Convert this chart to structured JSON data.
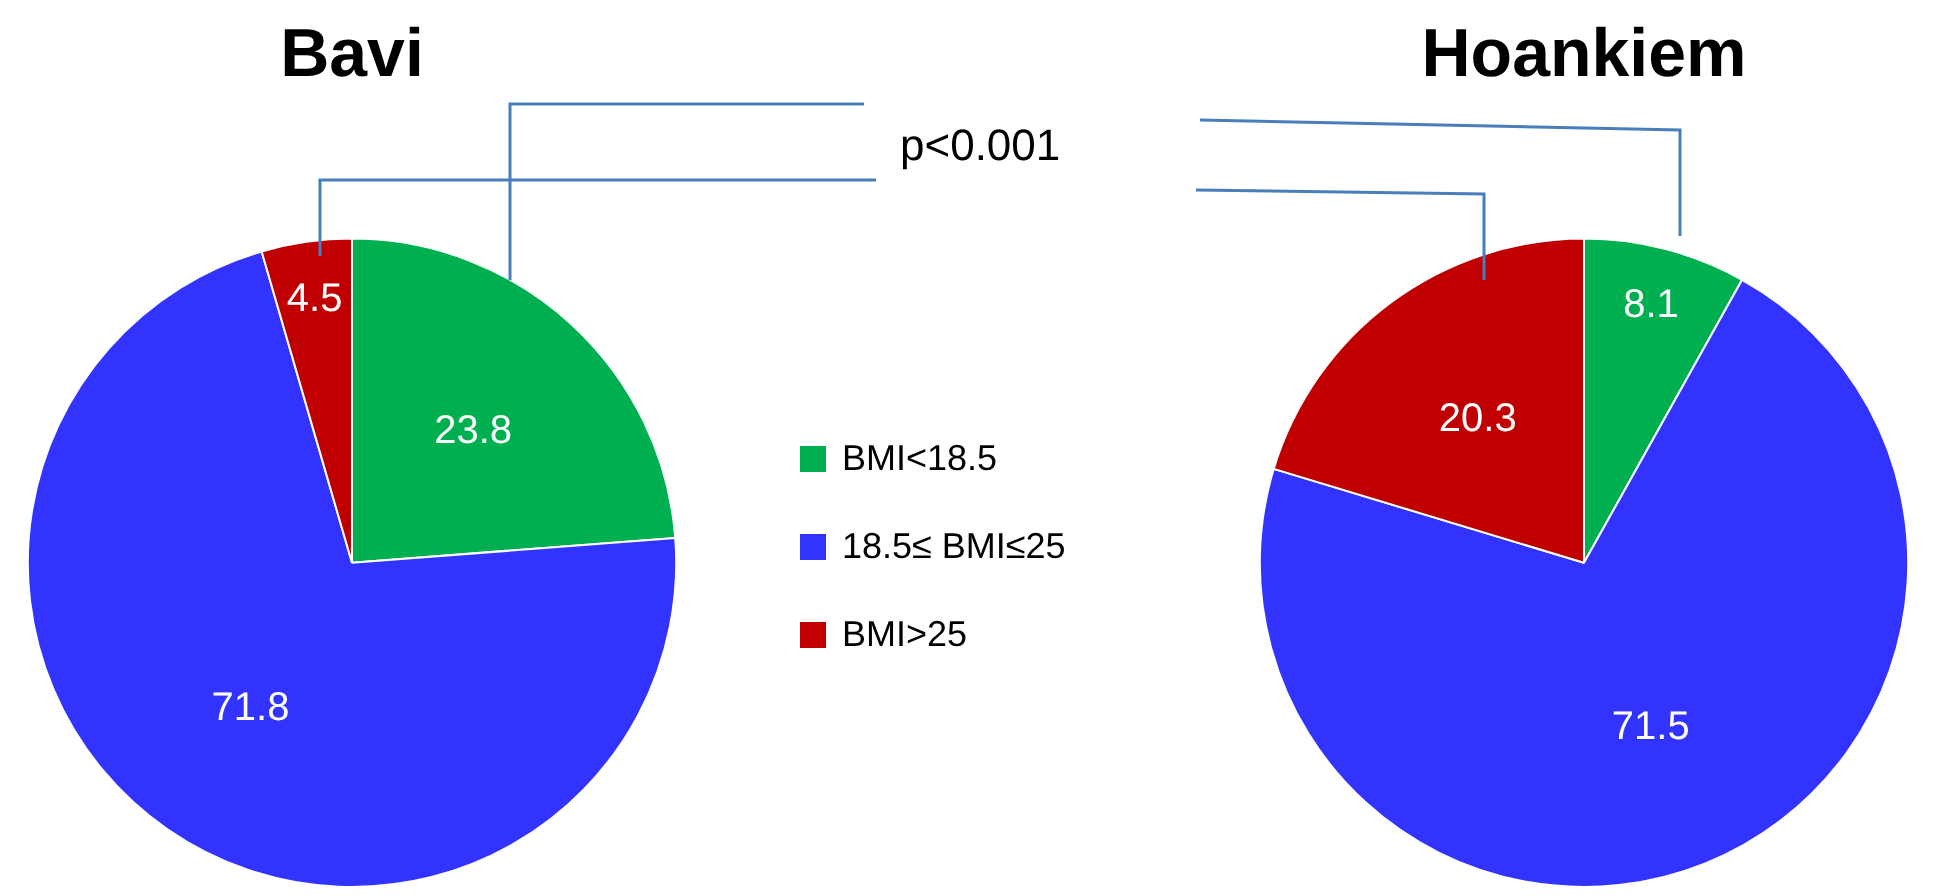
{
  "chart_data": [
    {
      "type": "pie",
      "title": "Bavi",
      "categories": [
        "BMI<18.5",
        "18.5≤ BMI≤25",
        "BMI>25"
      ],
      "values": [
        23.8,
        71.8,
        4.5
      ],
      "colors": [
        "#00b050",
        "#3333ff",
        "#c00000"
      ],
      "data_labels": true,
      "legend": "right",
      "annotations": [
        "p<0.001"
      ]
    },
    {
      "type": "pie",
      "title": "Hoankiem",
      "values": [
        8.1,
        71.5,
        20.3
      ],
      "colors": [
        "#00b050",
        "#3333ff",
        "#c00000"
      ],
      "data_labels": true
    }
  ]
}
